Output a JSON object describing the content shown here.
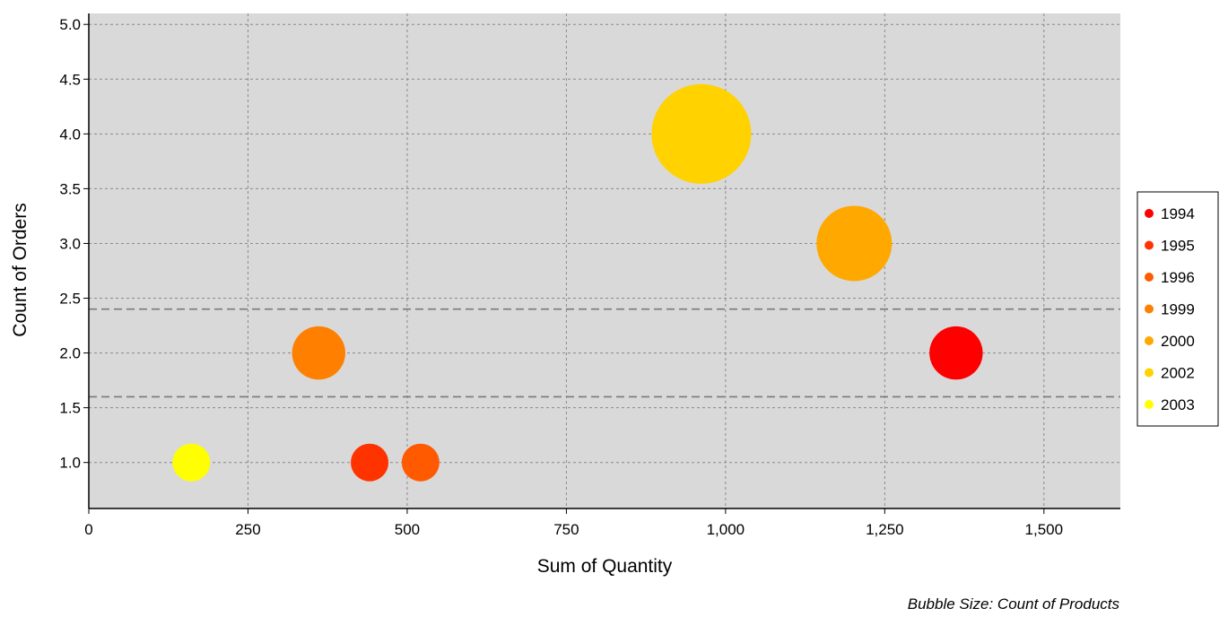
{
  "chart_data": {
    "type": "bubble",
    "xlabel": "Sum of Quantity",
    "ylabel": "Count of Orders",
    "size_note": "Bubble Size: Count of Products",
    "xlim": [
      0,
      1620
    ],
    "ylim": [
      0.58,
      5.1
    ],
    "x_ticks": [
      {
        "value": 0,
        "label": "0"
      },
      {
        "value": 250,
        "label": "250"
      },
      {
        "value": 500,
        "label": "500"
      },
      {
        "value": 750,
        "label": "750"
      },
      {
        "value": 1000,
        "label": "1,000"
      },
      {
        "value": 1250,
        "label": "1,250"
      },
      {
        "value": 1500,
        "label": "1,500"
      }
    ],
    "y_ticks": [
      {
        "value": 1.0,
        "label": "1.0"
      },
      {
        "value": 1.5,
        "label": "1.5"
      },
      {
        "value": 2.0,
        "label": "2.0"
      },
      {
        "value": 2.5,
        "label": "2.5"
      },
      {
        "value": 3.0,
        "label": "3.0"
      },
      {
        "value": 3.5,
        "label": "3.5"
      },
      {
        "value": 4.0,
        "label": "4.0"
      },
      {
        "value": 4.5,
        "label": "4.5"
      },
      {
        "value": 5.0,
        "label": "5.0"
      }
    ],
    "grid": true,
    "reference_lines_y": [
      1.6,
      2.4
    ],
    "legend_position": "right",
    "series": [
      {
        "name": "1994",
        "color": "#ff0000",
        "x": 1362,
        "y": 2,
        "size": 2
      },
      {
        "name": "1995",
        "color": "#ff3300",
        "x": 441,
        "y": 1,
        "size": 1
      },
      {
        "name": "1996",
        "color": "#ff5a00",
        "x": 521,
        "y": 1,
        "size": 1
      },
      {
        "name": "1999",
        "color": "#ff7f00",
        "x": 361,
        "y": 2,
        "size": 2
      },
      {
        "name": "2000",
        "color": "#ffa800",
        "x": 1202,
        "y": 3,
        "size": 4
      },
      {
        "name": "2002",
        "color": "#ffd200",
        "x": 962,
        "y": 4,
        "size": 7
      },
      {
        "name": "2003",
        "color": "#ffff00",
        "x": 161,
        "y": 1,
        "size": 1
      }
    ]
  }
}
